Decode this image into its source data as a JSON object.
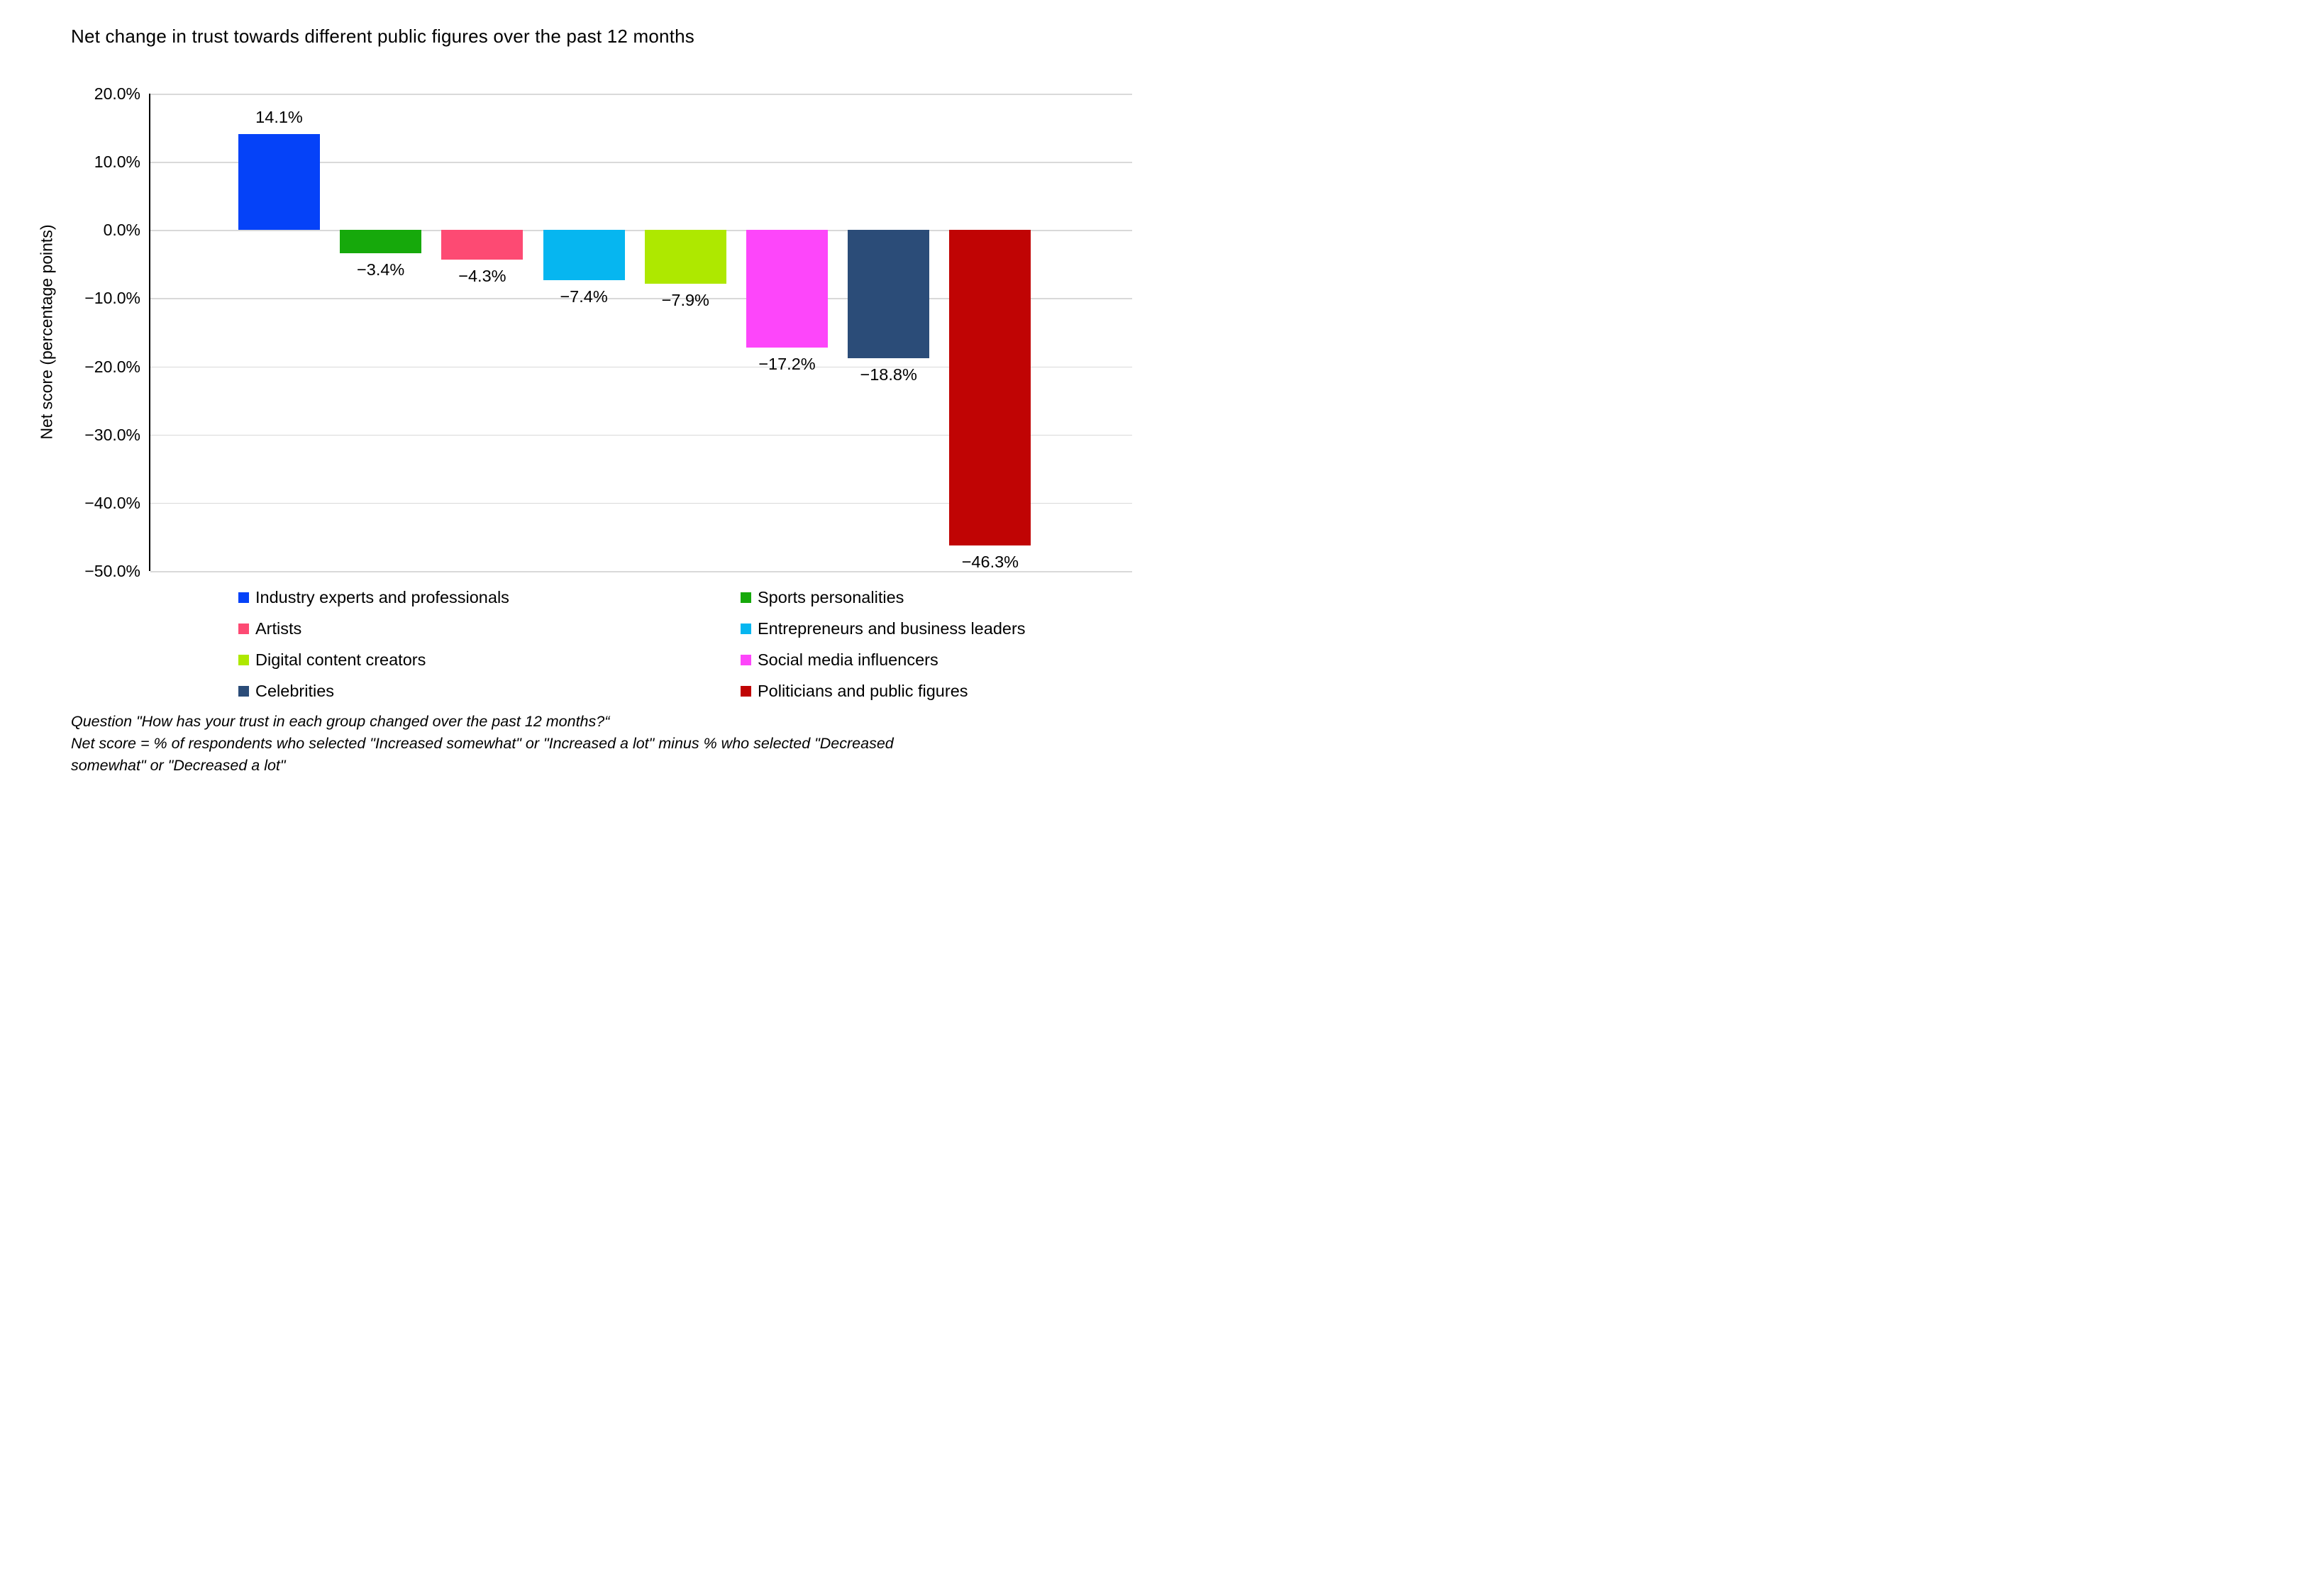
{
  "title": "Net change in trust towards different public figures over the past 12 months",
  "chart_data": {
    "type": "bar",
    "title": "Net change in trust towards different public figures over the past 12 months",
    "xlabel": "",
    "ylabel": "Net score (percentage points)",
    "ylim": [
      -50,
      20
    ],
    "ytick_step": 10,
    "grid": true,
    "legend_position": "bottom",
    "yticks": [
      {
        "value": 20,
        "label": "20.0%"
      },
      {
        "value": 10,
        "label": "10.0%"
      },
      {
        "value": 0,
        "label": "0.0%"
      },
      {
        "value": -10,
        "label": "−10.0%"
      },
      {
        "value": -20,
        "label": "−20.0%"
      },
      {
        "value": -30,
        "label": "−30.0%"
      },
      {
        "value": -40,
        "label": "−40.0%"
      },
      {
        "value": -50,
        "label": "−50.0%"
      }
    ],
    "categories": [
      "Industry experts and professionals",
      "Sports personalities",
      "Artists",
      "Entrepreneurs and business leaders",
      "Digital content creators",
      "Social media influencers",
      "Celebrities",
      "Politicians and public figures"
    ],
    "values": [
      14.1,
      -3.4,
      -4.3,
      -7.4,
      -7.9,
      -17.2,
      -18.8,
      -46.3
    ],
    "data_labels": [
      "14.1%",
      "−3.4%",
      "−4.3%",
      "−7.4%",
      "−7.9%",
      "−17.2%",
      "−18.8%",
      "−46.3%"
    ],
    "colors": [
      "#0542F8",
      "#16A90B",
      "#FD4A73",
      "#06B6F0",
      "#AEE800",
      "#FD46FA",
      "#2B4C78",
      "#C00404"
    ]
  },
  "legend": {
    "columns": [
      [
        {
          "label": "Industry experts and professionals",
          "color": "#0542F8"
        },
        {
          "label": "Artists",
          "color": "#FD4A73"
        },
        {
          "label": "Digital content creators",
          "color": "#AEE800"
        },
        {
          "label": "Celebrities",
          "color": "#2B4C78"
        }
      ],
      [
        {
          "label": "Sports personalities",
          "color": "#16A90B"
        },
        {
          "label": "Entrepreneurs and business leaders",
          "color": "#06B6F0"
        },
        {
          "label": "Social media influencers",
          "color": "#FD46FA"
        },
        {
          "label": "Politicians and public figures",
          "color": "#C00404"
        }
      ]
    ]
  },
  "footnote": {
    "lines": [
      "Question \"How has your trust in each group changed over the past 12 months?“",
      "Net score = % of respondents who selected \"Increased somewhat\" or \"Increased a lot\" minus % who selected \"Decreased",
      "somewhat\" or \"Decreased a lot\""
    ]
  }
}
